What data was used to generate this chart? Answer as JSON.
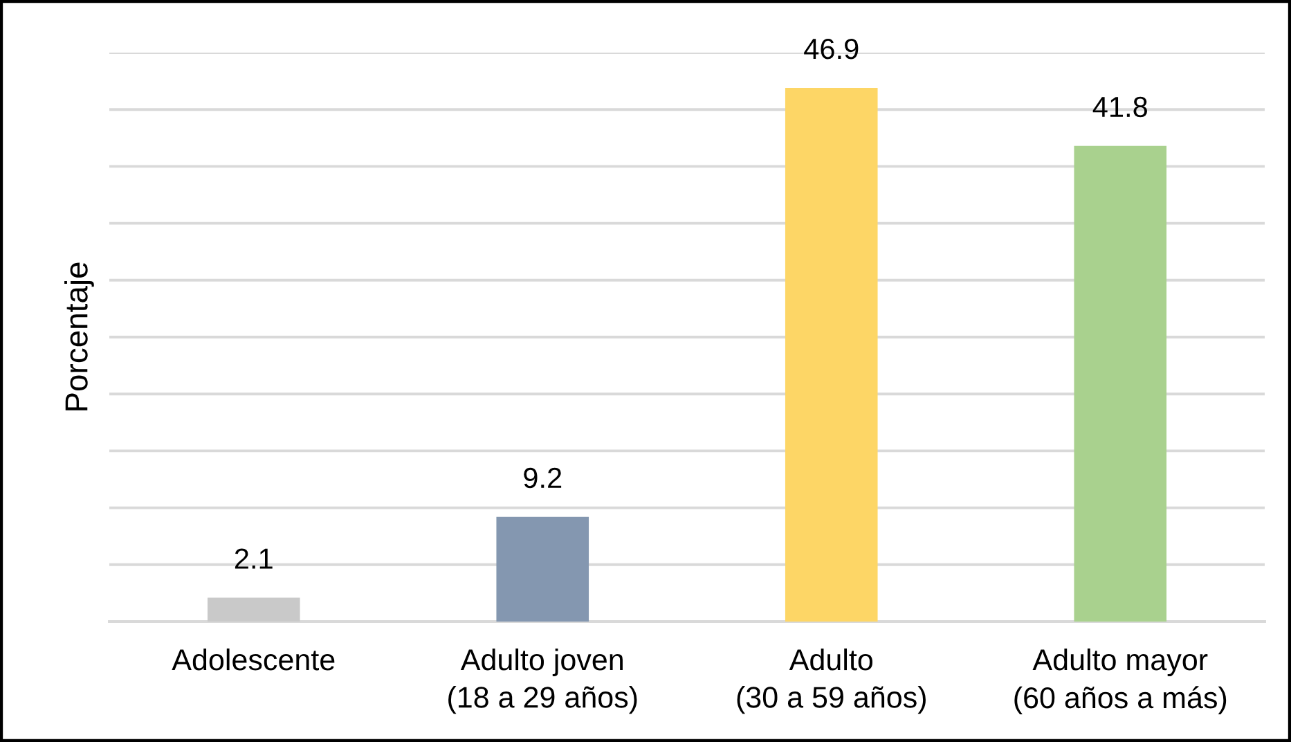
{
  "chart_data": {
    "type": "bar",
    "ylabel": "Porcentaje",
    "categories": [
      "Adolescente",
      "Adulto joven\n(18 a 29 años)",
      "Adulto\n(30 a 59 años)",
      "Adulto mayor\n(60 años a más)"
    ],
    "values": [
      2.1,
      9.2,
      46.9,
      41.8
    ],
    "colors": [
      "#c9c9c9",
      "#8497b0",
      "#fdd666",
      "#a9d18e"
    ],
    "ylim": [
      0,
      50
    ],
    "yticks": [
      {
        "value": 0,
        "label": null
      },
      {
        "value": 5,
        "label": null
      },
      {
        "value": 10,
        "label": null
      },
      {
        "value": 15,
        "label": null
      },
      {
        "value": 20,
        "label": null
      },
      {
        "value": 25,
        "label": null
      },
      {
        "value": 30,
        "label": null
      },
      {
        "value": 35,
        "label": null
      },
      {
        "value": 40,
        "label": null
      },
      {
        "value": 45,
        "label": null
      },
      {
        "value": 50,
        "label": null
      }
    ],
    "tick_labels": "x",
    "grid": "y",
    "data_labels": true
  }
}
